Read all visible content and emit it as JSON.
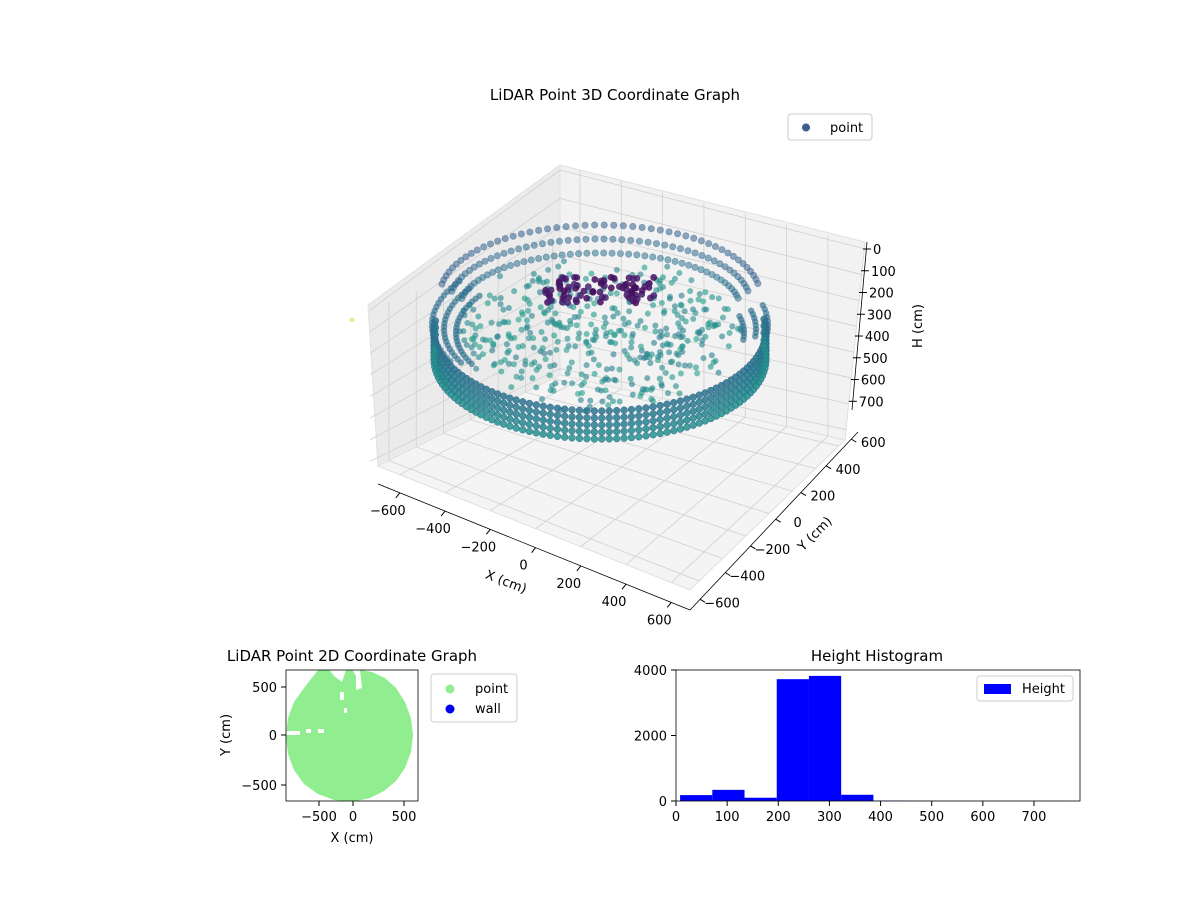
{
  "colors": {
    "point_3d_legend": "#3b5f8e",
    "point_2d": "#90ee90",
    "wall_2d": "#0000ee",
    "hist_bar": "#0000ff",
    "pane_fill": "#f2f2f2",
    "grid": "#d0d0d0"
  },
  "chart_data": [
    {
      "type": "scatter",
      "projection": "3d",
      "title": "LiDAR Point 3D Coordinate Graph",
      "xlabel": "X (cm)",
      "ylabel": "Y (cm)",
      "zlabel": "H (cm)",
      "x_ticks": [
        "−600",
        "−400",
        "−200",
        "0",
        "200",
        "400",
        "600"
      ],
      "y_ticks": [
        "−600",
        "−400",
        "−200",
        "0",
        "200",
        "400",
        "600"
      ],
      "z_ticks": [
        "0",
        "100",
        "200",
        "300",
        "400",
        "500",
        "600",
        "700"
      ],
      "xlim": [
        -650,
        650
      ],
      "ylim": [
        -650,
        650
      ],
      "zlim": [
        750,
        0
      ],
      "colormap": "viridis",
      "legend": {
        "position": "upper right",
        "entries": [
          "point"
        ]
      },
      "grid": true
    },
    {
      "type": "scatter",
      "title": "LiDAR Point 2D Coordinate Graph",
      "xlabel": "X (cm)",
      "ylabel": "Y (cm)",
      "x_ticks": [
        "−500",
        "0",
        "500"
      ],
      "y_ticks": [
        "500",
        "0",
        "−500"
      ],
      "xlim": [
        -670,
        660
      ],
      "ylim": [
        -680,
        660
      ],
      "legend": {
        "position": "outside right",
        "entries": [
          "point",
          "wall"
        ]
      },
      "grid": false
    },
    {
      "type": "bar",
      "subtype": "histogram",
      "title": "Height Histogram",
      "x_ticks": [
        "0",
        "100",
        "200",
        "300",
        "400",
        "500",
        "600",
        "700"
      ],
      "y_ticks": [
        "0",
        "2000",
        "4000"
      ],
      "xlim": [
        0,
        790
      ],
      "ylim": [
        0,
        4000
      ],
      "bins": [
        {
          "start": 8,
          "end": 71,
          "count": 180
        },
        {
          "start": 71,
          "end": 134,
          "count": 340
        },
        {
          "start": 134,
          "end": 197,
          "count": 100
        },
        {
          "start": 197,
          "end": 260,
          "count": 3720
        },
        {
          "start": 260,
          "end": 323,
          "count": 3820
        },
        {
          "start": 323,
          "end": 386,
          "count": 190
        },
        {
          "start": 386,
          "end": 449,
          "count": 10
        },
        {
          "start": 449,
          "end": 512,
          "count": 5
        },
        {
          "start": 512,
          "end": 575,
          "count": 3
        },
        {
          "start": 575,
          "end": 638,
          "count": 3
        },
        {
          "start": 638,
          "end": 701,
          "count": 2
        },
        {
          "start": 701,
          "end": 764,
          "count": 2
        }
      ],
      "legend": {
        "position": "upper right",
        "entries": [
          "Height"
        ]
      },
      "grid": false
    }
  ]
}
